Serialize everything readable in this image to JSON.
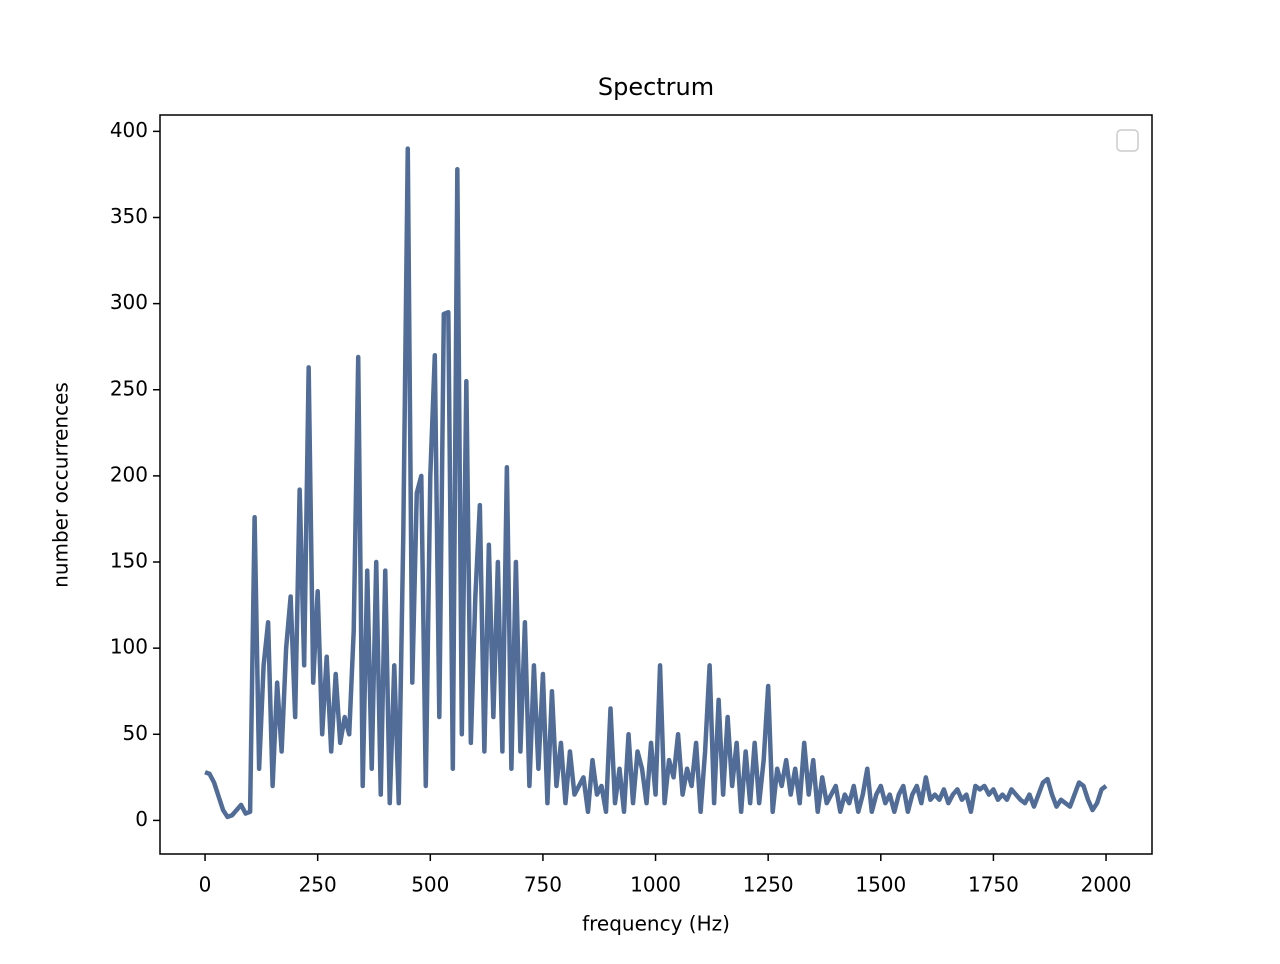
{
  "chart_data": {
    "type": "line",
    "title": "Spectrum",
    "xlabel": "frequency (Hz)",
    "ylabel": "number occurrences",
    "x": [
      0,
      10,
      20,
      30,
      40,
      50,
      60,
      70,
      80,
      90,
      100,
      110,
      120,
      130,
      140,
      150,
      160,
      170,
      180,
      190,
      200,
      210,
      220,
      230,
      240,
      250,
      260,
      270,
      280,
      290,
      300,
      310,
      320,
      330,
      340,
      350,
      360,
      370,
      380,
      390,
      400,
      410,
      420,
      430,
      440,
      450,
      460,
      470,
      480,
      490,
      500,
      510,
      520,
      530,
      540,
      550,
      560,
      570,
      580,
      590,
      600,
      610,
      620,
      630,
      640,
      650,
      660,
      670,
      680,
      690,
      700,
      710,
      720,
      730,
      740,
      750,
      760,
      770,
      780,
      790,
      800,
      810,
      820,
      830,
      840,
      850,
      860,
      870,
      880,
      890,
      900,
      910,
      920,
      930,
      940,
      950,
      960,
      970,
      980,
      990,
      1000,
      1010,
      1020,
      1030,
      1040,
      1050,
      1060,
      1070,
      1080,
      1090,
      1100,
      1110,
      1120,
      1130,
      1140,
      1150,
      1160,
      1170,
      1180,
      1190,
      1200,
      1210,
      1220,
      1230,
      1240,
      1250,
      1260,
      1270,
      1280,
      1290,
      1300,
      1310,
      1320,
      1330,
      1340,
      1350,
      1360,
      1370,
      1380,
      1390,
      1400,
      1410,
      1420,
      1430,
      1440,
      1450,
      1460,
      1470,
      1480,
      1490,
      1500,
      1510,
      1520,
      1530,
      1540,
      1550,
      1560,
      1570,
      1580,
      1590,
      1600,
      1610,
      1620,
      1630,
      1640,
      1650,
      1660,
      1670,
      1680,
      1690,
      1700,
      1710,
      1720,
      1730,
      1740,
      1750,
      1760,
      1770,
      1780,
      1790,
      1800,
      1810,
      1820,
      1830,
      1840,
      1850,
      1860,
      1870,
      1880,
      1890,
      1900,
      1910,
      1920,
      1930,
      1940,
      1950,
      1960,
      1970,
      1980,
      1990,
      2000
    ],
    "series": [
      {
        "color": "#506c97",
        "values": [
          28,
          27,
          22,
          14,
          6,
          2,
          3,
          6,
          9,
          4,
          5,
          176,
          30,
          90,
          115,
          20,
          80,
          40,
          100,
          130,
          60,
          192,
          90,
          263,
          80,
          133,
          50,
          95,
          40,
          85,
          45,
          60,
          50,
          110,
          269,
          20,
          145,
          30,
          150,
          15,
          145,
          10,
          90,
          10,
          165,
          390,
          80,
          190,
          200,
          20,
          200,
          270,
          60,
          294,
          295,
          30,
          378,
          50,
          255,
          45,
          130,
          183,
          40,
          160,
          60,
          150,
          40,
          205,
          30,
          150,
          40,
          115,
          20,
          90,
          30,
          85,
          10,
          75,
          20,
          45,
          10,
          40,
          15,
          20,
          25,
          5,
          35,
          15,
          20,
          5,
          65,
          10,
          30,
          5,
          50,
          10,
          40,
          30,
          10,
          45,
          15,
          90,
          10,
          35,
          25,
          50,
          15,
          30,
          20,
          45,
          5,
          40,
          90,
          10,
          70,
          15,
          60,
          20,
          45,
          5,
          40,
          10,
          45,
          10,
          35,
          78,
          5,
          30,
          20,
          35,
          15,
          30,
          10,
          45,
          15,
          35,
          5,
          25,
          10,
          15,
          20,
          5,
          15,
          10,
          20,
          5,
          15,
          30,
          5,
          15,
          20,
          10,
          15,
          5,
          15,
          20,
          5,
          15,
          20,
          10,
          25,
          12,
          15,
          12,
          18,
          10,
          15,
          18,
          12,
          15,
          5,
          20,
          18,
          20,
          15,
          18,
          12,
          15,
          12,
          18,
          15,
          12,
          10,
          15,
          8,
          15,
          22,
          24,
          15,
          8,
          12,
          10,
          8,
          15,
          22,
          20,
          12,
          6,
          10,
          18,
          20
        ]
      }
    ],
    "xlim": [
      -100,
      2102
    ],
    "ylim": [
      -19.5,
      409.5
    ],
    "xticks": [
      0,
      250,
      500,
      750,
      1000,
      1250,
      1500,
      1750,
      2000
    ],
    "yticks": [
      0,
      50,
      100,
      150,
      200,
      250,
      300,
      350,
      400
    ]
  }
}
